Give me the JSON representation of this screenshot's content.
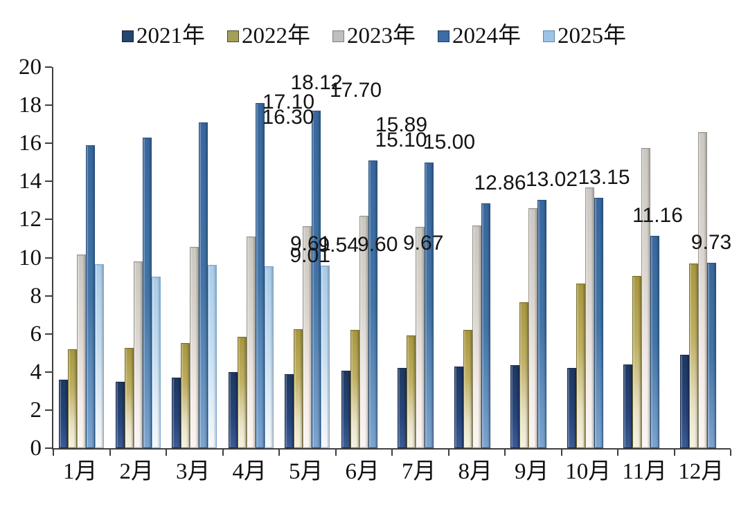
{
  "chart_data": {
    "type": "bar",
    "title": "",
    "xlabel": "",
    "ylabel": "",
    "categories": [
      "1月",
      "2月",
      "3月",
      "4月",
      "5月",
      "6月",
      "7月",
      "8月",
      "9月",
      "10月",
      "11月",
      "12月"
    ],
    "yticks": [
      0,
      2,
      4,
      6,
      8,
      10,
      12,
      14,
      16,
      18,
      20
    ],
    "ylim": [
      0,
      20
    ],
    "grid": false,
    "legend_position": "top",
    "series": [
      {
        "name": "2021年",
        "color": "#24456e",
        "values": [
          3.6,
          3.5,
          3.7,
          4.0,
          3.9,
          4.05,
          4.2,
          4.3,
          4.35,
          4.2,
          4.4,
          4.9
        ],
        "data_labels": false
      },
      {
        "name": "2022年",
        "color": "#a3a059",
        "values": [
          5.2,
          5.25,
          5.5,
          5.85,
          6.25,
          6.2,
          5.9,
          6.2,
          7.65,
          8.65,
          9.05,
          9.7
        ],
        "data_labels": false
      },
      {
        "name": "2023年",
        "color": "#bfbfbf",
        "values": [
          10.15,
          9.8,
          10.55,
          11.1,
          11.65,
          12.2,
          11.6,
          11.7,
          12.6,
          13.7,
          15.75,
          16.6
        ],
        "data_labels": false
      },
      {
        "name": "2024年",
        "color": "#3c6da5",
        "values": [
          15.89,
          16.3,
          17.1,
          18.12,
          17.7,
          15.1,
          15.0,
          12.86,
          13.02,
          13.15,
          11.16,
          9.73
        ],
        "data_labels": true,
        "label_texts": [
          "15.89",
          "16.30",
          "17.10",
          "18.12",
          "17.70",
          "15.10",
          "15.00",
          "12.86",
          "13.02",
          "13.15",
          "11.16",
          "9.73"
        ]
      },
      {
        "name": "2025年",
        "color": "#9dc3e6",
        "values": [
          9.67,
          9.01,
          9.61,
          9.54,
          9.6,
          null,
          null,
          null,
          null,
          null,
          null,
          null
        ],
        "data_labels": true,
        "label_texts": [
          "9.67",
          "9.01",
          "9.61",
          "9.54",
          "9.60",
          null,
          null,
          null,
          null,
          null,
          null,
          null
        ]
      }
    ]
  }
}
